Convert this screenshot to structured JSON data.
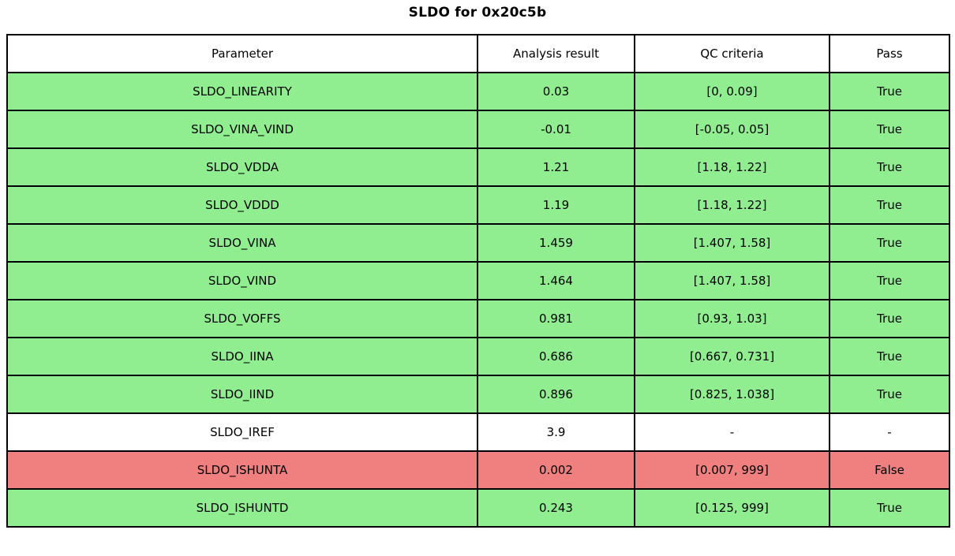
{
  "title": "SLDO for 0x20c5b",
  "colors": {
    "pass": "#90ee90",
    "fail": "#f08080",
    "neutral": "#ffffff",
    "border": "#000000"
  },
  "chart_data": {
    "type": "table",
    "title": "SLDO for 0x20c5b",
    "columns": [
      "Parameter",
      "Analysis result",
      "QC criteria",
      "Pass"
    ],
    "rows": [
      {
        "parameter": "SLDO_LINEARITY",
        "result": "0.03",
        "criteria": "[0, 0.09]",
        "pass": "True",
        "status": "pass"
      },
      {
        "parameter": "SLDO_VINA_VIND",
        "result": "-0.01",
        "criteria": "[-0.05, 0.05]",
        "pass": "True",
        "status": "pass"
      },
      {
        "parameter": "SLDO_VDDA",
        "result": "1.21",
        "criteria": "[1.18, 1.22]",
        "pass": "True",
        "status": "pass"
      },
      {
        "parameter": "SLDO_VDDD",
        "result": "1.19",
        "criteria": "[1.18, 1.22]",
        "pass": "True",
        "status": "pass"
      },
      {
        "parameter": "SLDO_VINA",
        "result": "1.459",
        "criteria": "[1.407, 1.58]",
        "pass": "True",
        "status": "pass"
      },
      {
        "parameter": "SLDO_VIND",
        "result": "1.464",
        "criteria": "[1.407, 1.58]",
        "pass": "True",
        "status": "pass"
      },
      {
        "parameter": "SLDO_VOFFS",
        "result": "0.981",
        "criteria": "[0.93, 1.03]",
        "pass": "True",
        "status": "pass"
      },
      {
        "parameter": "SLDO_IINA",
        "result": "0.686",
        "criteria": "[0.667, 0.731]",
        "pass": "True",
        "status": "pass"
      },
      {
        "parameter": "SLDO_IIND",
        "result": "0.896",
        "criteria": "[0.825, 1.038]",
        "pass": "True",
        "status": "pass"
      },
      {
        "parameter": "SLDO_IREF",
        "result": "3.9",
        "criteria": "-",
        "pass": "-",
        "status": "neutral"
      },
      {
        "parameter": "SLDO_ISHUNTA",
        "result": "0.002",
        "criteria": "[0.007, 999]",
        "pass": "False",
        "status": "fail"
      },
      {
        "parameter": "SLDO_ISHUNTD",
        "result": "0.243",
        "criteria": "[0.125, 999]",
        "pass": "True",
        "status": "pass"
      }
    ]
  }
}
